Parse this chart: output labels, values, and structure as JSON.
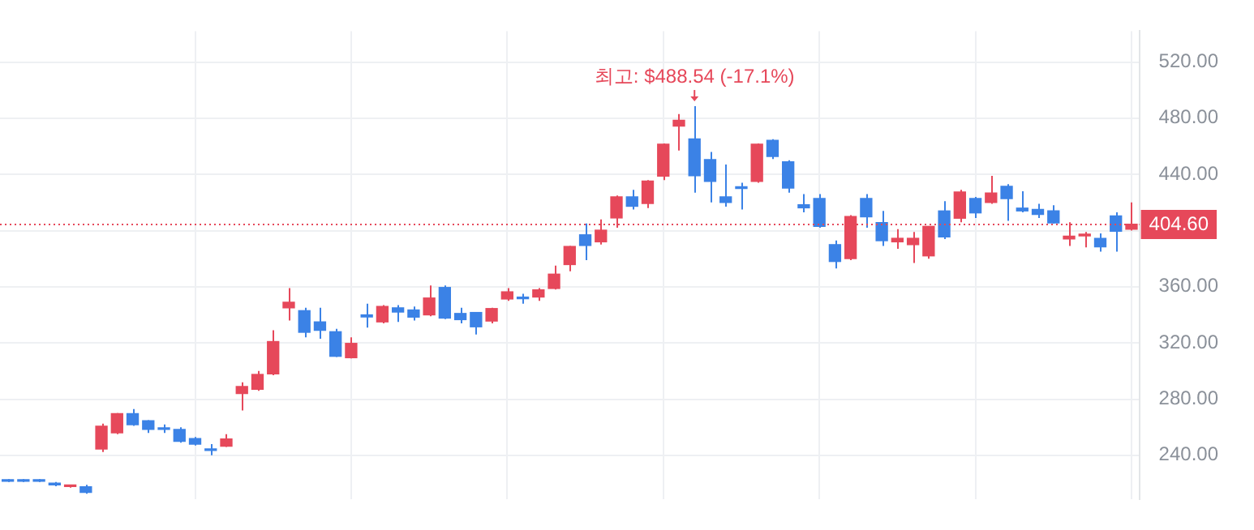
{
  "chart_data": {
    "type": "candlestick",
    "categories": [
      null,
      null,
      null,
      null,
      null,
      null,
      null,
      null,
      null,
      null,
      null,
      null,
      null,
      null,
      null,
      null,
      null,
      null,
      null,
      null,
      null,
      null,
      null,
      null,
      null,
      null,
      null,
      null,
      null,
      null,
      null,
      null,
      null,
      null,
      null,
      null,
      null,
      null,
      null,
      null,
      null,
      null,
      null,
      null,
      null,
      null,
      null,
      null,
      null,
      null,
      null,
      null,
      null,
      null,
      null,
      null,
      null,
      null,
      null,
      null,
      null,
      null,
      null,
      null,
      null,
      null,
      null,
      null,
      null,
      null,
      null,
      null,
      null
    ],
    "ohlc": [
      [
        222,
        223,
        221,
        221.5
      ],
      [
        221.5,
        223,
        221,
        222
      ],
      [
        222,
        223,
        221,
        221.5
      ],
      [
        219.5,
        221,
        218,
        219
      ],
      [
        217.8,
        218.5,
        217,
        218
      ],
      [
        217.6,
        219,
        212.6,
        213.6
      ],
      [
        244.5,
        262.6,
        242.4,
        260.8
      ],
      [
        256,
        270,
        255,
        269.7
      ],
      [
        269.7,
        273,
        261,
        261.8
      ],
      [
        264.6,
        265,
        256,
        258.5
      ],
      [
        259,
        262,
        256,
        258.5
      ],
      [
        258.5,
        260,
        249,
        250
      ],
      [
        252,
        253,
        247,
        248
      ],
      [
        244.5,
        248,
        240,
        243.5
      ],
      [
        246.5,
        255,
        246,
        251.6
      ],
      [
        284,
        292,
        272,
        289
      ],
      [
        287,
        300,
        286,
        297.6
      ],
      [
        298,
        329,
        297,
        321
      ],
      [
        345,
        359,
        336,
        349
      ],
      [
        343,
        345,
        324,
        327.6
      ],
      [
        335,
        345,
        323,
        329
      ],
      [
        328,
        330,
        310,
        310.5
      ],
      [
        309.5,
        324,
        309,
        319.7
      ],
      [
        340,
        348,
        331,
        338.5
      ],
      [
        335,
        347,
        334,
        346
      ],
      [
        345,
        347,
        335,
        342
      ],
      [
        343.5,
        346,
        336,
        338.4
      ],
      [
        340,
        361,
        339,
        352
      ],
      [
        359.5,
        361,
        337,
        337.7
      ],
      [
        341,
        345,
        334,
        336.6
      ],
      [
        341.7,
        342,
        326,
        331.5
      ],
      [
        335.6,
        345,
        334,
        344.5
      ],
      [
        351.3,
        359,
        350,
        356.4
      ],
      [
        352.5,
        355,
        348,
        351.5
      ],
      [
        352.7,
        359,
        350,
        357.8
      ],
      [
        358.8,
        375,
        358,
        369
      ],
      [
        375.8,
        389,
        371,
        388.7
      ],
      [
        397,
        405,
        379,
        389.4
      ],
      [
        392,
        408,
        390,
        400.3
      ],
      [
        409,
        425,
        402,
        424
      ],
      [
        424,
        429,
        415,
        417.3
      ],
      [
        419.3,
        436,
        416,
        435.3
      ],
      [
        438.7,
        462,
        436,
        461.5
      ],
      [
        474.4,
        483,
        457,
        478.5
      ],
      [
        465.2,
        488.54,
        427,
        439.1
      ],
      [
        450.6,
        456,
        420,
        435
      ],
      [
        424,
        447,
        417,
        420
      ],
      [
        430.5,
        434,
        415,
        430
      ],
      [
        435,
        462,
        434,
        461.5
      ],
      [
        464.2,
        465,
        451,
        452.7
      ],
      [
        449,
        450,
        427,
        430.2
      ],
      [
        418.4,
        426,
        413,
        416.2
      ],
      [
        422.8,
        426,
        402,
        403
      ],
      [
        390,
        393,
        373,
        378
      ],
      [
        380,
        411,
        379,
        410
      ],
      [
        422.8,
        426,
        402,
        409.8
      ],
      [
        405.7,
        414,
        389,
        392.8
      ],
      [
        392,
        401,
        387,
        394.5
      ],
      [
        390,
        399,
        377,
        394.5
      ],
      [
        382,
        403,
        380,
        403
      ],
      [
        414,
        421,
        394,
        395.5
      ],
      [
        408.8,
        429,
        406,
        427.5
      ],
      [
        422.8,
        424,
        409,
        412.6
      ],
      [
        420,
        439,
        419,
        426.8
      ],
      [
        431.5,
        433,
        407,
        422.8
      ],
      [
        416,
        428,
        413,
        414
      ],
      [
        415,
        419,
        409,
        411.5
      ],
      [
        414,
        418,
        405,
        405.4
      ],
      [
        394,
        406,
        389,
        396
      ],
      [
        396.2,
        399,
        388,
        397.5
      ],
      [
        394.5,
        398,
        385,
        388.4
      ],
      [
        410.5,
        413,
        385,
        399.6
      ],
      [
        401,
        420,
        400,
        404.6
      ]
    ],
    "colors": [
      "#3b82e6",
      "#3b82e6",
      "#3b82e6",
      "#3b82e6",
      "#e6485a",
      "#3b82e6",
      "#e6485a",
      "#e6485a",
      "#3b82e6",
      "#3b82e6",
      "#3b82e6",
      "#3b82e6",
      "#3b82e6",
      "#3b82e6",
      "#e6485a",
      "#e6485a",
      "#e6485a",
      "#e6485a",
      "#e6485a",
      "#3b82e6",
      "#3b82e6",
      "#3b82e6",
      "#e6485a",
      "#3b82e6",
      "#e6485a",
      "#3b82e6",
      "#3b82e6",
      "#e6485a",
      "#3b82e6",
      "#3b82e6",
      "#3b82e6",
      "#e6485a",
      "#e6485a",
      "#3b82e6",
      "#e6485a",
      "#e6485a",
      "#e6485a",
      "#3b82e6",
      "#e6485a",
      "#e6485a",
      "#3b82e6",
      "#e6485a",
      "#e6485a",
      "#e6485a",
      "#3b82e6",
      "#3b82e6",
      "#3b82e6",
      "#3b82e6",
      "#e6485a",
      "#3b82e6",
      "#3b82e6",
      "#3b82e6",
      "#3b82e6",
      "#3b82e6",
      "#e6485a",
      "#3b82e6",
      "#3b82e6",
      "#e6485a",
      "#e6485a",
      "#e6485a",
      "#3b82e6",
      "#e6485a",
      "#3b82e6",
      "#e6485a",
      "#3b82e6",
      "#3b82e6",
      "#3b82e6",
      "#3b82e6",
      "#e6485a",
      "#e6485a",
      "#3b82e6",
      "#3b82e6",
      "#e6485a"
    ],
    "ylim": [
      209,
      542
    ],
    "yticks": [
      {
        "value": 240,
        "label": "240.00"
      },
      {
        "value": 280,
        "label": "280.00"
      },
      {
        "value": 320,
        "label": "320.00"
      },
      {
        "value": 360,
        "label": "360.00"
      },
      {
        "value": 400,
        "label": null
      },
      {
        "value": 440,
        "label": "440.00"
      },
      {
        "value": 480,
        "label": "480.00"
      },
      {
        "value": 520,
        "label": "520.00"
      }
    ],
    "grid": true,
    "tick_labels": "y",
    "ref_lines": [
      {
        "axis": "y",
        "value": 404.6,
        "label": "404.60",
        "color": "#e6485a",
        "line_style": "dotted"
      }
    ],
    "annotations": [
      "최고: $488.54 (-17.1%)"
    ]
  }
}
